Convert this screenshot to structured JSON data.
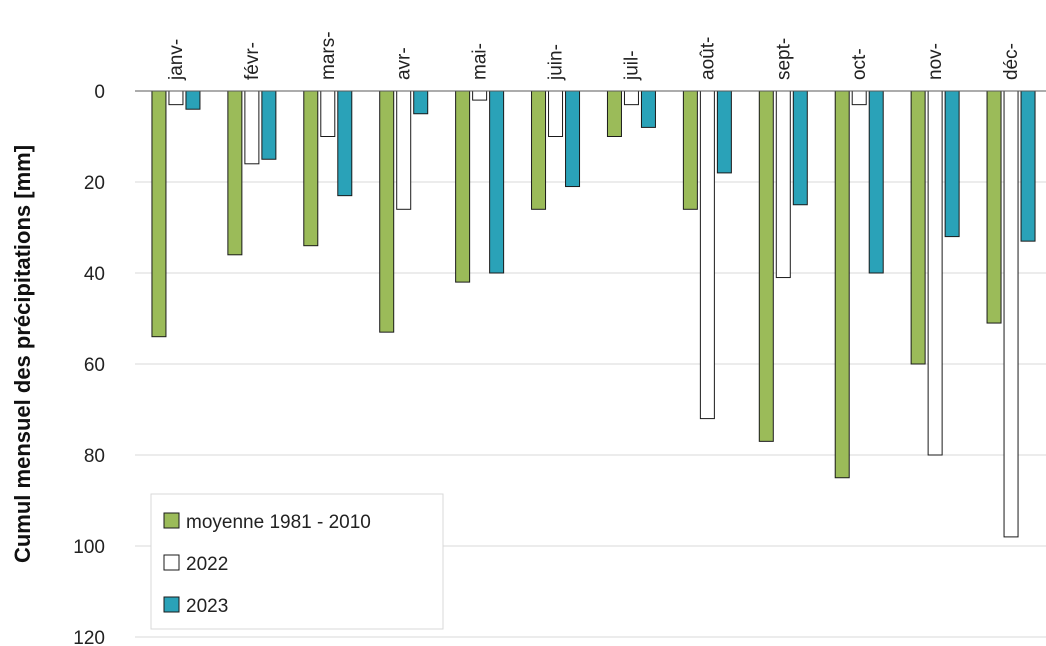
{
  "chart_data": {
    "type": "bar",
    "title": "",
    "xlabel": "",
    "ylabel": "Cumul mensuel des précipitations [mm]",
    "ylim": [
      0,
      120
    ],
    "y_axis_inverted": true,
    "y_ticks": [
      0,
      20,
      40,
      60,
      80,
      100,
      120
    ],
    "x_axis_position": "top",
    "grid": true,
    "legend_position": "bottom-left",
    "categories": [
      "janv-",
      "févr-",
      "mars-",
      "avr-",
      "mai-",
      "juin-",
      "juil-",
      "août-",
      "sept-",
      "oct-",
      "nov-",
      "déc-"
    ],
    "series": [
      {
        "name": "moyenne 1981 - 2010",
        "color": "#9bbb59",
        "values": [
          54,
          36,
          34,
          53,
          42,
          26,
          10,
          26,
          77,
          85,
          60,
          51
        ]
      },
      {
        "name": "2022",
        "color": "#ffffff",
        "values": [
          3,
          16,
          10,
          26,
          2,
          10,
          3,
          72,
          41,
          3,
          80,
          98
        ]
      },
      {
        "name": "2023",
        "color": "#2aa2b8",
        "values": [
          4,
          15,
          23,
          5,
          40,
          21,
          8,
          18,
          25,
          40,
          32,
          33
        ]
      }
    ]
  }
}
